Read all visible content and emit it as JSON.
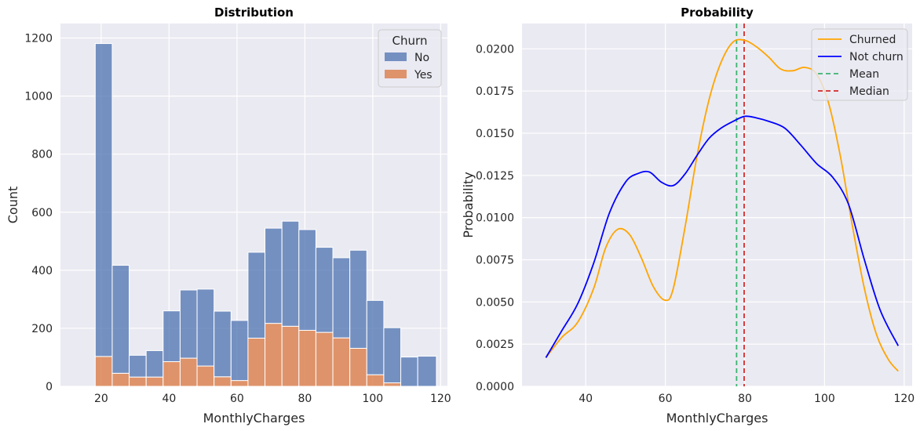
{
  "colors": {
    "no": "#4c72b0",
    "yes": "#dd8452",
    "churned": "#ffa500",
    "not_churn": "#0000ff",
    "mean": "#3cb371",
    "median": "#d62728",
    "plot_bg": "#eaeaf2",
    "grid": "#ffffff"
  },
  "chart_data": [
    {
      "type": "bar",
      "title": "Distribution",
      "xlabel": "MonthlyCharges",
      "ylabel": "Count",
      "xlim": [
        8,
        122
      ],
      "ylim": [
        0,
        1250
      ],
      "xticks": [
        20,
        40,
        60,
        80,
        100,
        120
      ],
      "yticks": [
        0,
        200,
        400,
        600,
        800,
        1000,
        1200
      ],
      "grid": true,
      "stacked": true,
      "legend": {
        "title": "Churn",
        "placement": "top-right",
        "entries": [
          "No",
          "Yes"
        ]
      },
      "bin_edges": [
        18.25,
        23.25,
        28.25,
        33.25,
        38.25,
        43.25,
        48.25,
        53.25,
        58.25,
        63.25,
        68.25,
        73.25,
        78.25,
        83.25,
        88.25,
        93.25,
        98.25,
        103.25,
        108.25,
        113.25,
        118.75
      ],
      "series": [
        {
          "name": "No",
          "values": [
            1078,
            372,
            75,
            91,
            175,
            235,
            265,
            226,
            207,
            296,
            328,
            362,
            347,
            293,
            276,
            338,
            256,
            190,
            101,
            104
          ]
        },
        {
          "name": "Yes",
          "values": [
            103,
            45,
            32,
            32,
            85,
            97,
            70,
            33,
            20,
            166,
            217,
            207,
            193,
            186,
            167,
            131,
            40,
            12,
            0,
            0
          ]
        }
      ]
    },
    {
      "type": "line",
      "title": "Probability",
      "xlabel": "MonthlyCharges",
      "ylabel": "Probability",
      "xlim": [
        24,
        122
      ],
      "ylim": [
        0,
        0.0215
      ],
      "xticks": [
        40,
        60,
        80,
        100,
        120
      ],
      "yticks": [
        "0.0000",
        "0.0025",
        "0.0050",
        "0.0075",
        "0.0100",
        "0.0125",
        "0.0150",
        "0.0175",
        "0.0200"
      ],
      "grid": true,
      "legend": {
        "placement": "top-right",
        "entries": [
          "Churned",
          "Not churn",
          "Mean",
          "Median"
        ]
      },
      "series": [
        {
          "name": "Churned",
          "x": [
            30,
            34,
            38,
            42,
            45,
            48,
            51,
            54,
            57,
            60,
            62,
            65,
            68,
            71,
            74,
            77,
            80,
            83,
            86,
            89,
            92,
            95,
            98,
            101,
            104,
            107,
            110,
            113,
            116,
            118.5
          ],
          "y": [
            0.0017,
            0.0029,
            0.0038,
            0.0058,
            0.0082,
            0.0093,
            0.009,
            0.0076,
            0.0059,
            0.0051,
            0.0058,
            0.0095,
            0.0137,
            0.017,
            0.0192,
            0.0204,
            0.0205,
            0.0201,
            0.0195,
            0.0188,
            0.0187,
            0.0189,
            0.0185,
            0.0168,
            0.0136,
            0.0095,
            0.0058,
            0.0031,
            0.0016,
            0.0009
          ]
        },
        {
          "name": "Not churn",
          "x": [
            30,
            34,
            38,
            42,
            46,
            50,
            53,
            56,
            59,
            62,
            65,
            68,
            71,
            74,
            77,
            80,
            83,
            86,
            90,
            94,
            98,
            102,
            106,
            110,
            114,
            118.5
          ],
          "y": [
            0.0017,
            0.0033,
            0.0049,
            0.0073,
            0.0103,
            0.0121,
            0.0126,
            0.0127,
            0.0121,
            0.0119,
            0.0126,
            0.0137,
            0.0147,
            0.0153,
            0.0157,
            0.016,
            0.0159,
            0.0157,
            0.0153,
            0.0143,
            0.0132,
            0.0124,
            0.0108,
            0.0075,
            0.0045,
            0.0024
          ]
        }
      ],
      "vlines": [
        {
          "name": "Mean",
          "x": 77.9,
          "style": "dashed"
        },
        {
          "name": "Median",
          "x": 79.8,
          "style": "dashed"
        }
      ]
    }
  ]
}
